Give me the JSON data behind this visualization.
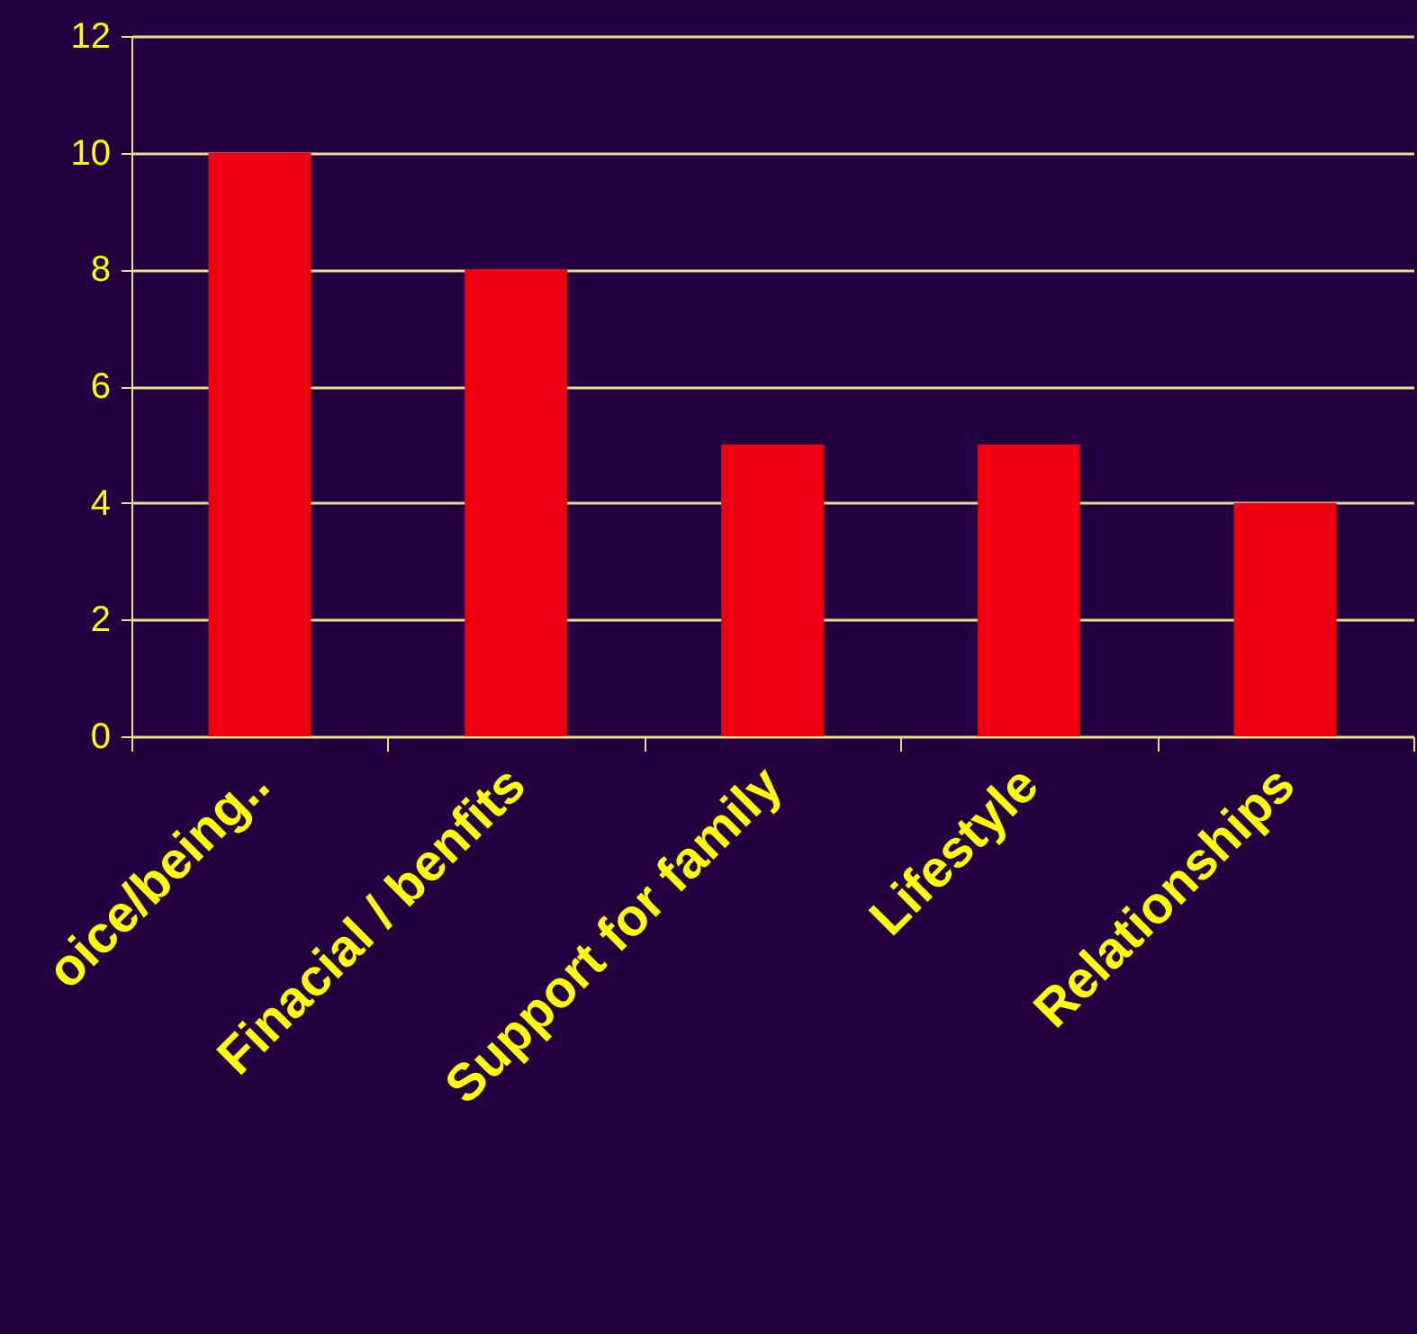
{
  "chart_data": {
    "type": "bar",
    "categories": [
      "oice/being..",
      "Finacial / benfits",
      "Support for family",
      "Lifestyle",
      "Relationships"
    ],
    "values": [
      10,
      8,
      5,
      5,
      4
    ],
    "color": "#ee0010",
    "ylim": [
      0,
      12
    ],
    "yticks": [
      0,
      2,
      4,
      6,
      8,
      10,
      12
    ],
    "grid": "y"
  }
}
